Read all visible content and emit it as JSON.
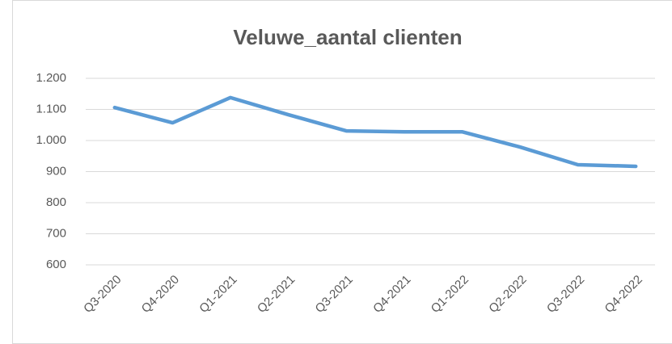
{
  "chart_data": {
    "type": "line",
    "title": "Veluwe_aantal clienten",
    "categories": [
      "Q3-2020",
      "Q4-2020",
      "Q1-2021",
      "Q2-2021",
      "Q3-2021",
      "Q4-2021",
      "Q1-2022",
      "Q2-2022",
      "Q3-2022",
      "Q4-2022"
    ],
    "values": [
      1106,
      1057,
      1138,
      1083,
      1031,
      1028,
      1028,
      979,
      922,
      917
    ],
    "color": "#5b9bd5",
    "ylim": [
      600,
      1200
    ],
    "yticks": [
      600,
      700,
      800,
      900,
      {
        "value": 1000,
        "label": "1.000"
      },
      {
        "value": 1100,
        "label": "1.100"
      },
      {
        "value": 1200,
        "label": "1.200"
      }
    ],
    "grid": true
  }
}
